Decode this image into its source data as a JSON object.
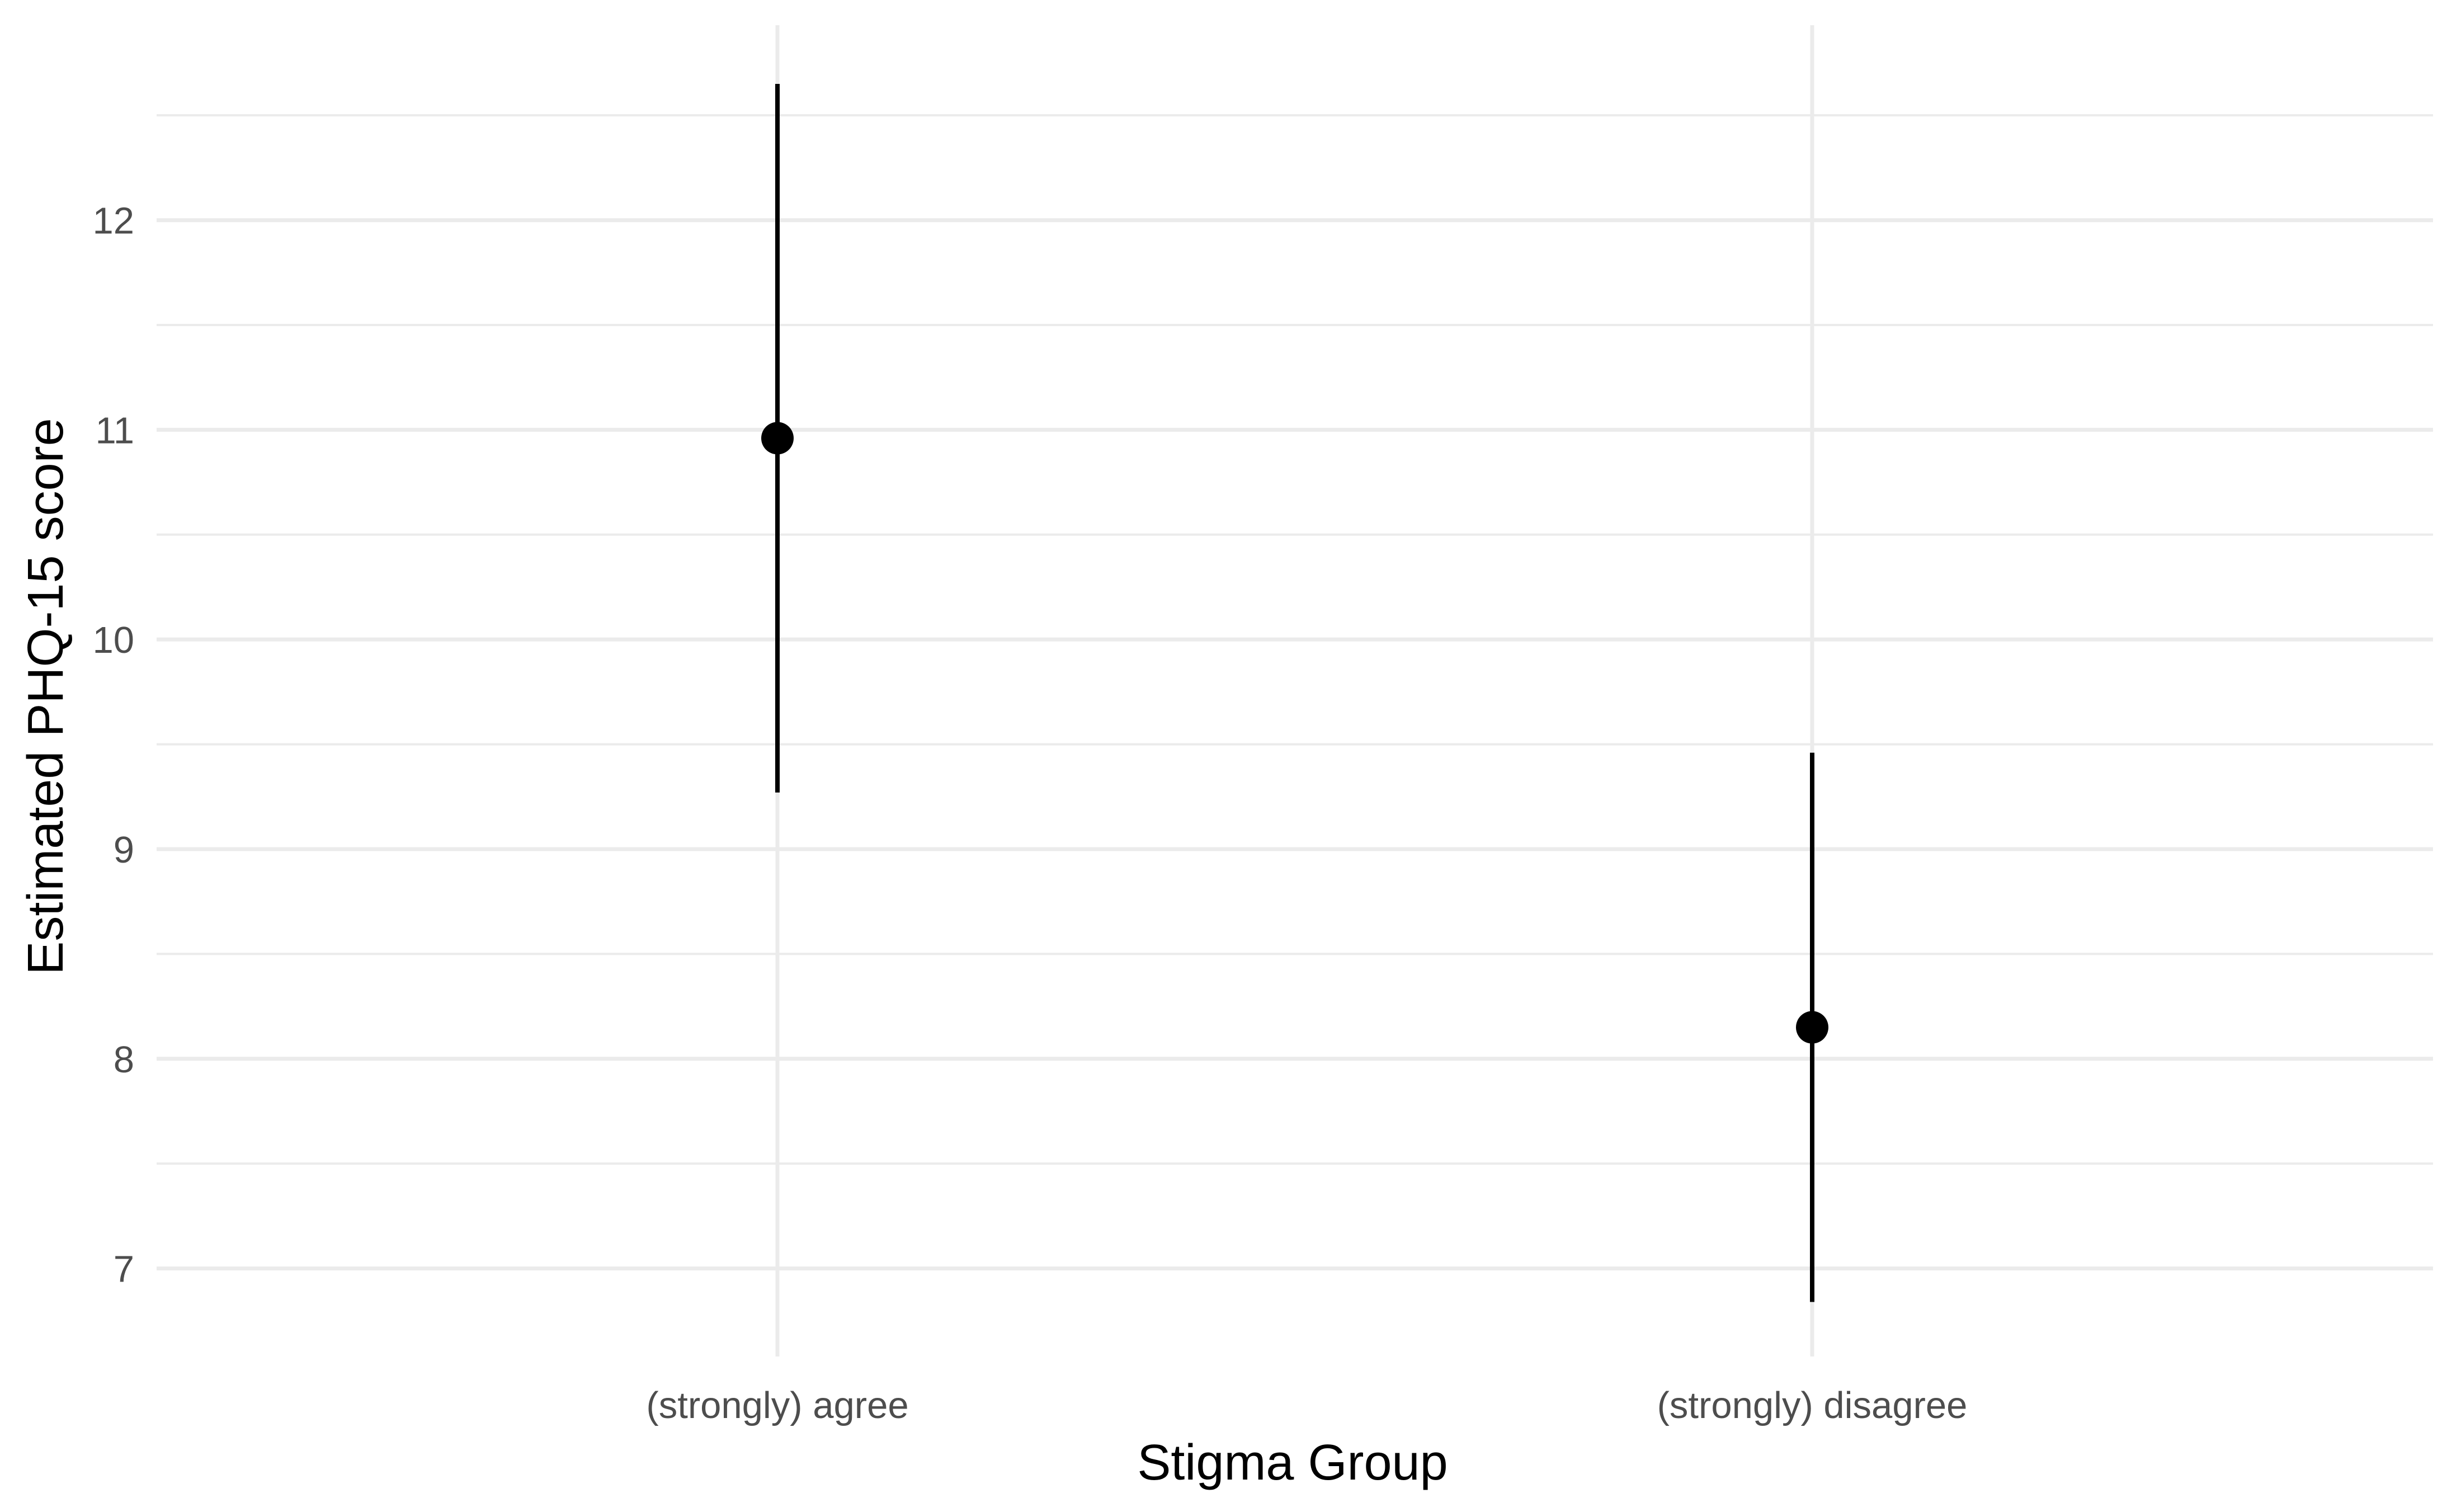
{
  "chart_data": {
    "type": "scatter",
    "xlabel": "Stigma Group",
    "ylabel": "Estimated PHQ-15 score",
    "categories": [
      "(strongly) agree",
      "(strongly) disagree"
    ],
    "points": [
      {
        "category": "(strongly) agree",
        "estimate": 10.96,
        "lower": 9.27,
        "upper": 12.65
      },
      {
        "category": "(strongly) disagree",
        "estimate": 8.15,
        "lower": 6.84,
        "upper": 9.46
      }
    ],
    "yticks": [
      "7",
      "8",
      "9",
      "10",
      "11",
      "12"
    ],
    "ylim": [
      6.58,
      12.93
    ],
    "grid": true,
    "legend": "none"
  }
}
